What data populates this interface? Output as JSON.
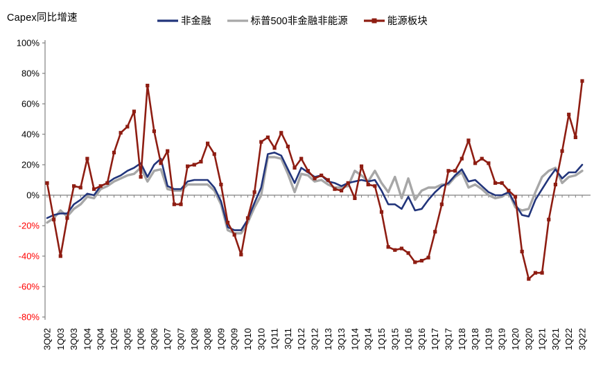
{
  "chart_data": {
    "type": "line",
    "title": "Capex同比增速",
    "legend_position": "top",
    "grid": false,
    "ylim": [
      -80,
      100
    ],
    "y_tick_values": [
      100,
      80,
      60,
      40,
      20,
      0,
      -20,
      -40,
      -60,
      -80
    ],
    "y_tick_labels": [
      "100%",
      "80%",
      "60%",
      "40%",
      "20%",
      "0%",
      "-20%",
      "-40%",
      "-60%",
      "-80%"
    ],
    "x_label_every": 2,
    "categories": [
      "3Q02",
      "4Q02",
      "1Q03",
      "2Q03",
      "3Q03",
      "4Q03",
      "1Q04",
      "2Q04",
      "3Q04",
      "4Q04",
      "1Q05",
      "2Q05",
      "3Q05",
      "4Q05",
      "1Q06",
      "2Q06",
      "3Q06",
      "4Q06",
      "1Q07",
      "2Q07",
      "3Q07",
      "4Q07",
      "1Q08",
      "2Q08",
      "3Q08",
      "4Q08",
      "1Q09",
      "2Q09",
      "3Q09",
      "4Q09",
      "1Q10",
      "2Q10",
      "3Q10",
      "4Q10",
      "1Q11",
      "2Q11",
      "3Q11",
      "4Q11",
      "1Q12",
      "2Q12",
      "3Q12",
      "4Q12",
      "1Q13",
      "2Q13",
      "3Q13",
      "4Q13",
      "1Q14",
      "2Q14",
      "3Q14",
      "4Q14",
      "1Q15",
      "2Q15",
      "3Q15",
      "4Q15",
      "1Q16",
      "2Q16",
      "3Q16",
      "4Q16",
      "1Q17",
      "2Q17",
      "3Q17",
      "4Q17",
      "1Q18",
      "2Q18",
      "3Q18",
      "4Q18",
      "1Q19",
      "2Q19",
      "3Q19",
      "4Q19",
      "1Q20",
      "2Q20",
      "3Q20",
      "4Q20",
      "1Q21",
      "2Q21",
      "3Q21",
      "4Q21",
      "1Q22",
      "2Q22",
      "3Q22"
    ],
    "series": [
      {
        "name": "非金融",
        "color": "#22357B",
        "marker": "none",
        "values": [
          -15,
          -13,
          -12,
          -12,
          -6,
          -3,
          1,
          0,
          6,
          8,
          11,
          13,
          16,
          18,
          21,
          12,
          20,
          24,
          6,
          4,
          4,
          9,
          10,
          10,
          10,
          5,
          -4,
          -21,
          -23,
          -23,
          -16,
          -5,
          5,
          27,
          28,
          26,
          17,
          8,
          18,
          15,
          12,
          13,
          9,
          8,
          6,
          8,
          9,
          10,
          9,
          10,
          3,
          -6,
          -6,
          -9,
          -1,
          -10,
          -9,
          -3,
          2,
          6,
          8,
          13,
          17,
          9,
          10,
          6,
          2,
          0,
          0,
          2,
          -6,
          -13,
          -14,
          -3,
          4,
          11,
          17,
          11,
          15,
          15,
          20
        ]
      },
      {
        "name": "标普500非金融非能源",
        "color": "#A7A7A7",
        "marker": "none",
        "values": [
          -18,
          -15,
          -10,
          -14,
          -9,
          -6,
          -1,
          -2,
          4,
          6,
          9,
          11,
          13,
          14,
          18,
          9,
          16,
          17,
          4,
          3,
          3,
          7,
          7,
          7,
          7,
          3,
          -6,
          -23,
          -25,
          -25,
          -18,
          -8,
          0,
          25,
          25,
          24,
          14,
          2,
          14,
          13,
          9,
          10,
          7,
          5,
          5,
          6,
          16,
          13,
          9,
          16,
          8,
          2,
          12,
          -2,
          11,
          -3,
          3,
          5,
          5,
          7,
          7,
          12,
          15,
          5,
          7,
          4,
          0,
          -2,
          -1,
          2,
          -8,
          -10,
          -9,
          2,
          12,
          16,
          18,
          8,
          12,
          13,
          16
        ]
      },
      {
        "name": "能源板块",
        "color": "#8E1D12",
        "marker": "square",
        "values": [
          8,
          -16,
          -40,
          -15,
          6,
          5,
          24,
          4,
          6,
          8,
          28,
          41,
          45,
          55,
          12,
          72,
          42,
          21,
          29,
          -6,
          -6,
          19,
          20,
          22,
          34,
          27,
          7,
          -18,
          -26,
          -39,
          -15,
          2,
          35,
          38,
          31,
          41,
          32,
          18,
          24,
          16,
          11,
          13,
          10,
          4,
          3,
          8,
          -2,
          19,
          7,
          6,
          -11,
          -34,
          -36,
          -35,
          -38,
          -44,
          -43,
          -41,
          -24,
          -6,
          16,
          16,
          24,
          36,
          21,
          24,
          21,
          8,
          8,
          3,
          -1,
          -37,
          -55,
          -51,
          -51,
          -16,
          7,
          29,
          53,
          38,
          75
        ]
      }
    ],
    "styles": {
      "negative_tick_color": "#FF0000",
      "positive_tick_color": "#000000",
      "axis_color": "#808080",
      "background": "#FFFFFF"
    }
  }
}
